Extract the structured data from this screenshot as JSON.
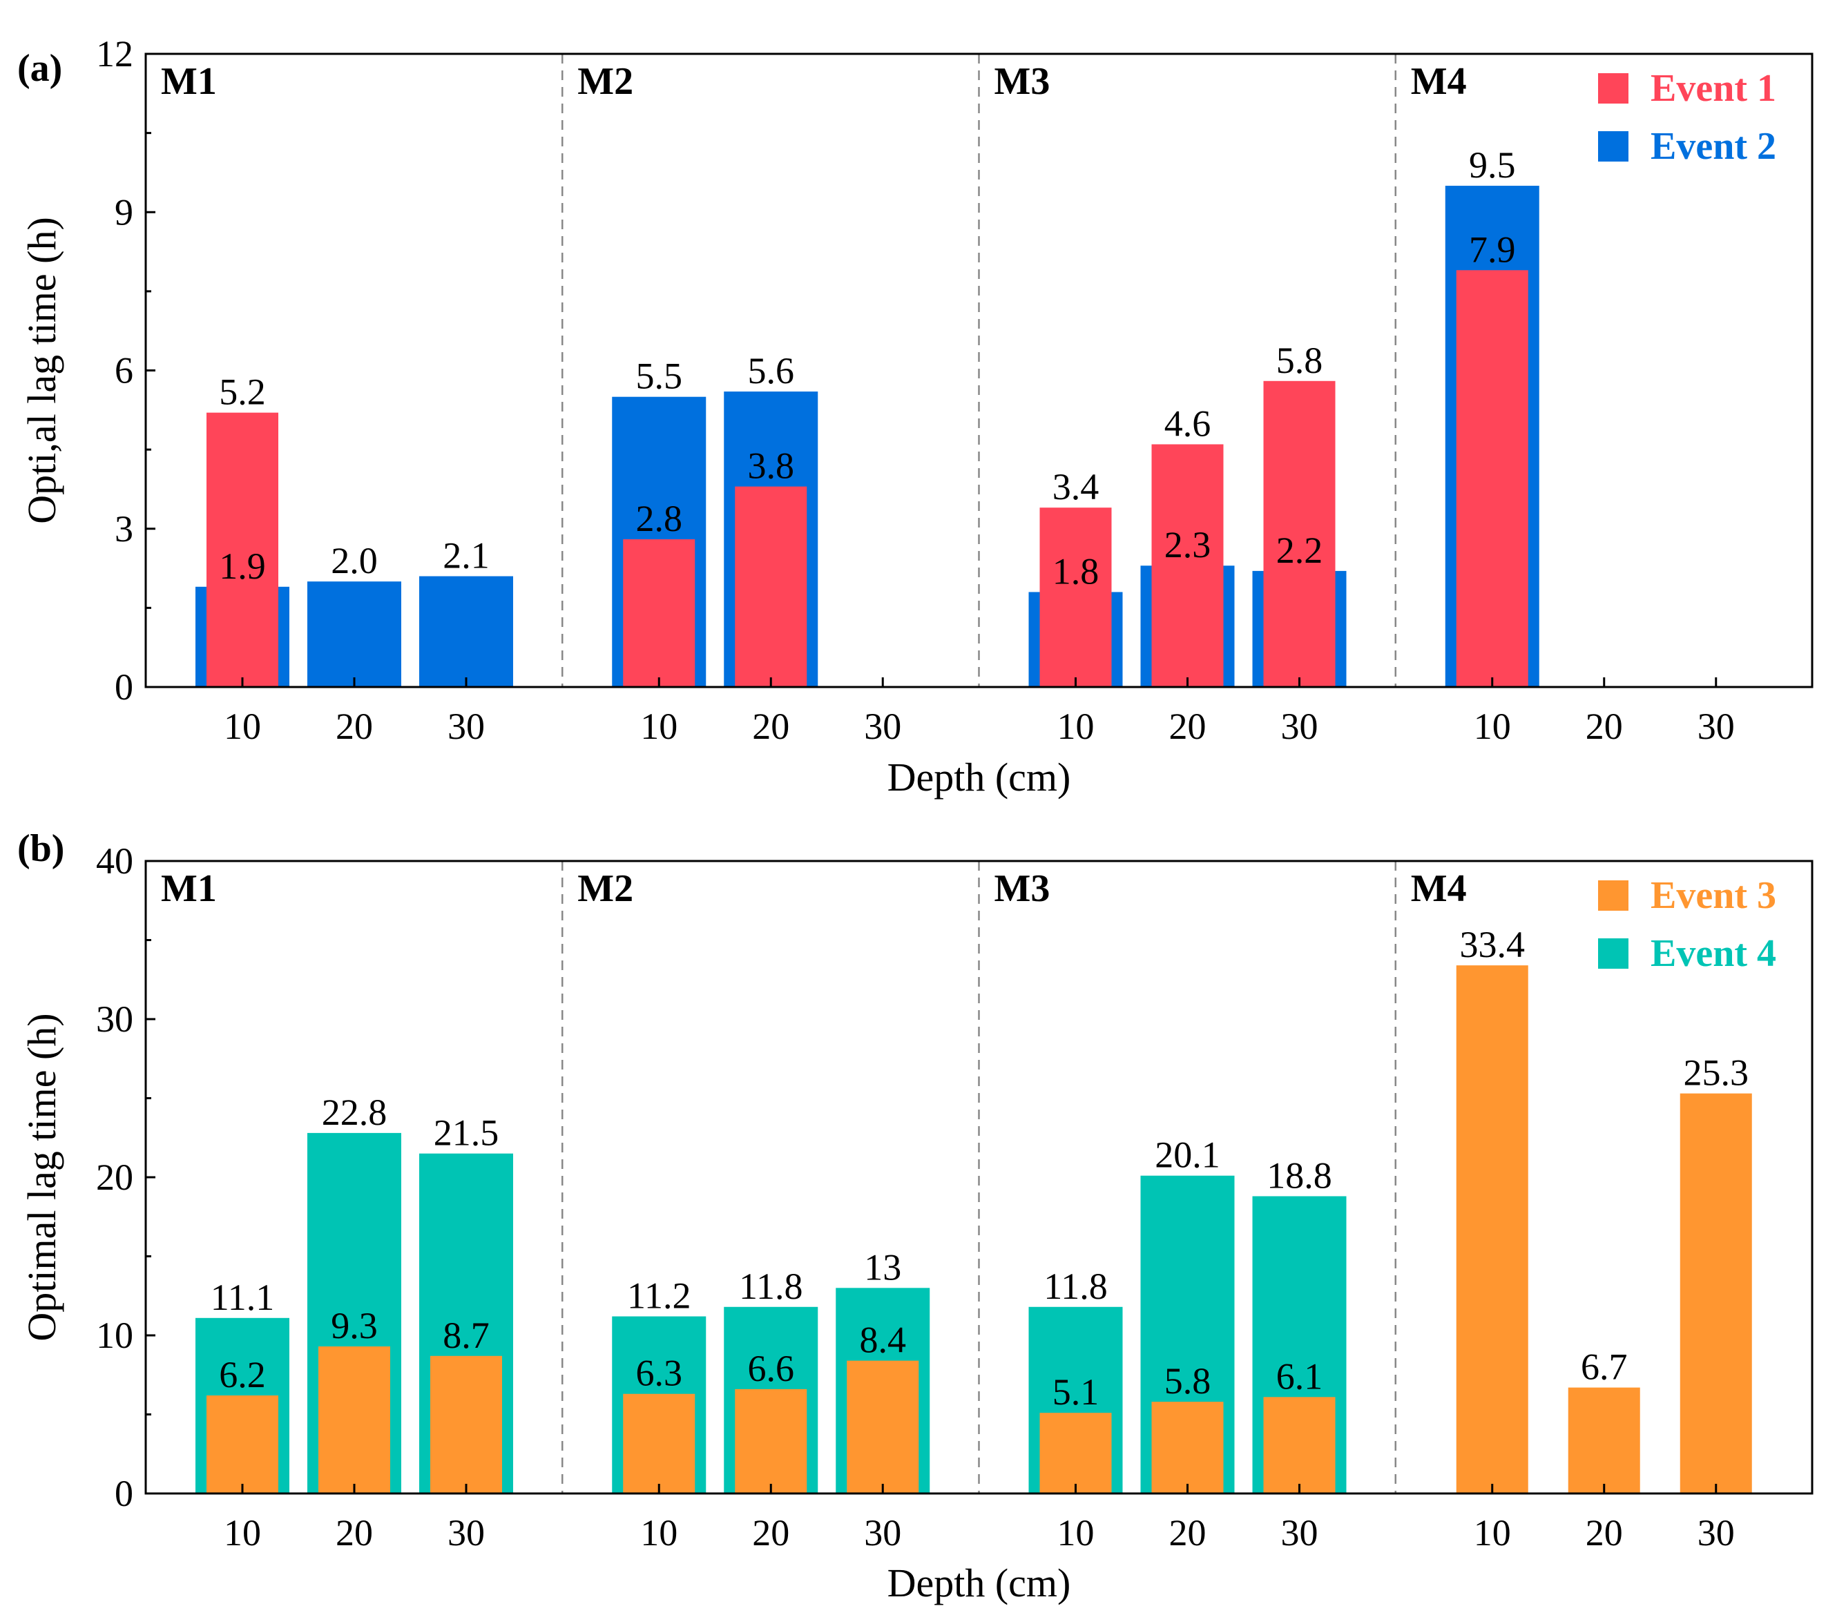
{
  "colors": {
    "event1": "#FF4559",
    "event2": "#0070DE",
    "event3": "#FF9630",
    "event4": "#00C4B4",
    "axis": "#000000",
    "divider": "#888888"
  },
  "chart_data": [
    {
      "type": "bar",
      "panel_label": "(a)",
      "ylabel": "Opti,al lag time (h)",
      "xlabel": "Depth (cm)",
      "ylim": [
        0,
        12
      ],
      "yticks": [
        "0",
        "3",
        "6",
        "9",
        "12"
      ],
      "grid": false,
      "legend_position": "top-right",
      "groups": [
        {
          "name": "M1",
          "categories": [
            "10",
            "20",
            "30"
          ]
        },
        {
          "name": "M2",
          "categories": [
            "10",
            "20",
            "30"
          ]
        },
        {
          "name": "M3",
          "categories": [
            "10",
            "20",
            "30"
          ]
        },
        {
          "name": "M4",
          "categories": [
            "10",
            "20",
            "30"
          ]
        }
      ],
      "series": [
        {
          "name": "Event 2",
          "color_key": "event2",
          "layer": "back",
          "values": [
            1.9,
            2.0,
            2.1,
            5.5,
            5.6,
            null,
            1.8,
            2.3,
            2.2,
            9.5,
            null,
            null
          ],
          "labels": [
            "1.9",
            "2.0",
            "2.1",
            "5.5",
            "5.6",
            null,
            "1.8",
            "2.3",
            "2.2",
            "9.5",
            null,
            null
          ]
        },
        {
          "name": "Event 1",
          "color_key": "event1",
          "layer": "front",
          "values": [
            5.2,
            null,
            null,
            2.8,
            3.8,
            null,
            3.4,
            4.6,
            5.8,
            7.9,
            null,
            null
          ],
          "labels": [
            "5.2",
            null,
            null,
            "2.8",
            "3.8",
            null,
            "3.4",
            "4.6",
            "5.8",
            "7.9",
            null,
            null
          ]
        }
      ],
      "legend": [
        "Event 1",
        "Event 2"
      ]
    },
    {
      "type": "bar",
      "panel_label": "(b)",
      "ylabel": "Optimal lag time (h)",
      "xlabel": "Depth (cm)",
      "ylim": [
        0,
        40
      ],
      "yticks": [
        "0",
        "10",
        "20",
        "30",
        "40"
      ],
      "grid": false,
      "legend_position": "top-right",
      "groups": [
        {
          "name": "M1",
          "categories": [
            "10",
            "20",
            "30"
          ]
        },
        {
          "name": "M2",
          "categories": [
            "10",
            "20",
            "30"
          ]
        },
        {
          "name": "M3",
          "categories": [
            "10",
            "20",
            "30"
          ]
        },
        {
          "name": "M4",
          "categories": [
            "10",
            "20",
            "30"
          ]
        }
      ],
      "series": [
        {
          "name": "Event 4",
          "color_key": "event4",
          "layer": "back",
          "values": [
            11.1,
            22.8,
            21.5,
            11.2,
            11.8,
            13,
            11.8,
            20.1,
            18.8,
            null,
            null,
            null
          ],
          "labels": [
            "11.1",
            "22.8",
            "21.5",
            "11.2",
            "11.8",
            "13",
            "11.8",
            "20.1",
            "18.8",
            null,
            null,
            null
          ]
        },
        {
          "name": "Event 3",
          "color_key": "event3",
          "layer": "front",
          "values": [
            6.2,
            9.3,
            8.7,
            6.3,
            6.6,
            8.4,
            5.1,
            5.8,
            6.1,
            33.4,
            6.7,
            25.3
          ],
          "labels": [
            "6.2",
            "9.3",
            "8.7",
            "6.3",
            "6.6",
            "8.4",
            "5.1",
            "5.8",
            "6.1",
            "33.4",
            "6.7",
            "25.3"
          ]
        }
      ],
      "legend": [
        "Event 3",
        "Event 4"
      ]
    }
  ]
}
